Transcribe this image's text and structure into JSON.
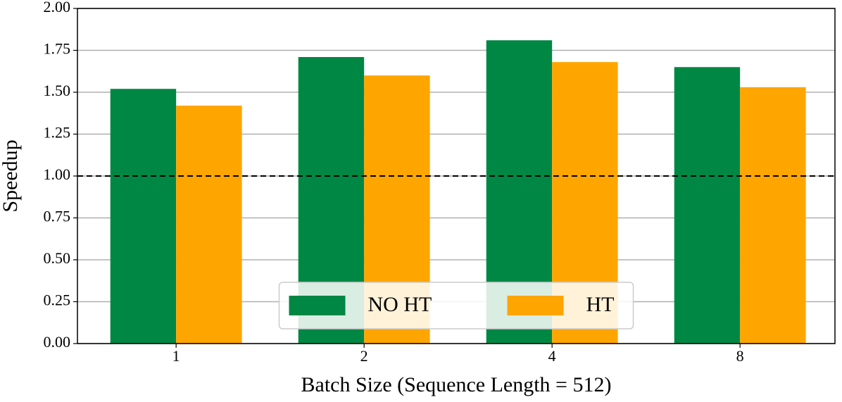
{
  "chart_data": {
    "type": "bar",
    "x_label": "Batch Size (Sequence Length = 512)",
    "y_label": "Speedup",
    "categories": [
      "1",
      "2",
      "4",
      "8"
    ],
    "series": [
      {
        "name": "NO HT",
        "color": "#008744",
        "values": [
          1.52,
          1.71,
          1.81,
          1.65
        ]
      },
      {
        "name": "HT",
        "color": "#ffa500",
        "values": [
          1.42,
          1.6,
          1.68,
          1.53
        ]
      }
    ],
    "ylim": [
      0,
      2
    ],
    "yticks": [
      {
        "value": 0,
        "label": "0.00"
      },
      0.25,
      {
        "value": 0.5,
        "label": "0.50"
      },
      0.75,
      {
        "value": 1,
        "label": "1.00"
      },
      1.25,
      {
        "value": 1.5,
        "label": "1.50"
      },
      1.75,
      {
        "value": 2,
        "label": "2.00"
      }
    ],
    "grid": true,
    "reference_line": 1,
    "legend": "lower center"
  }
}
